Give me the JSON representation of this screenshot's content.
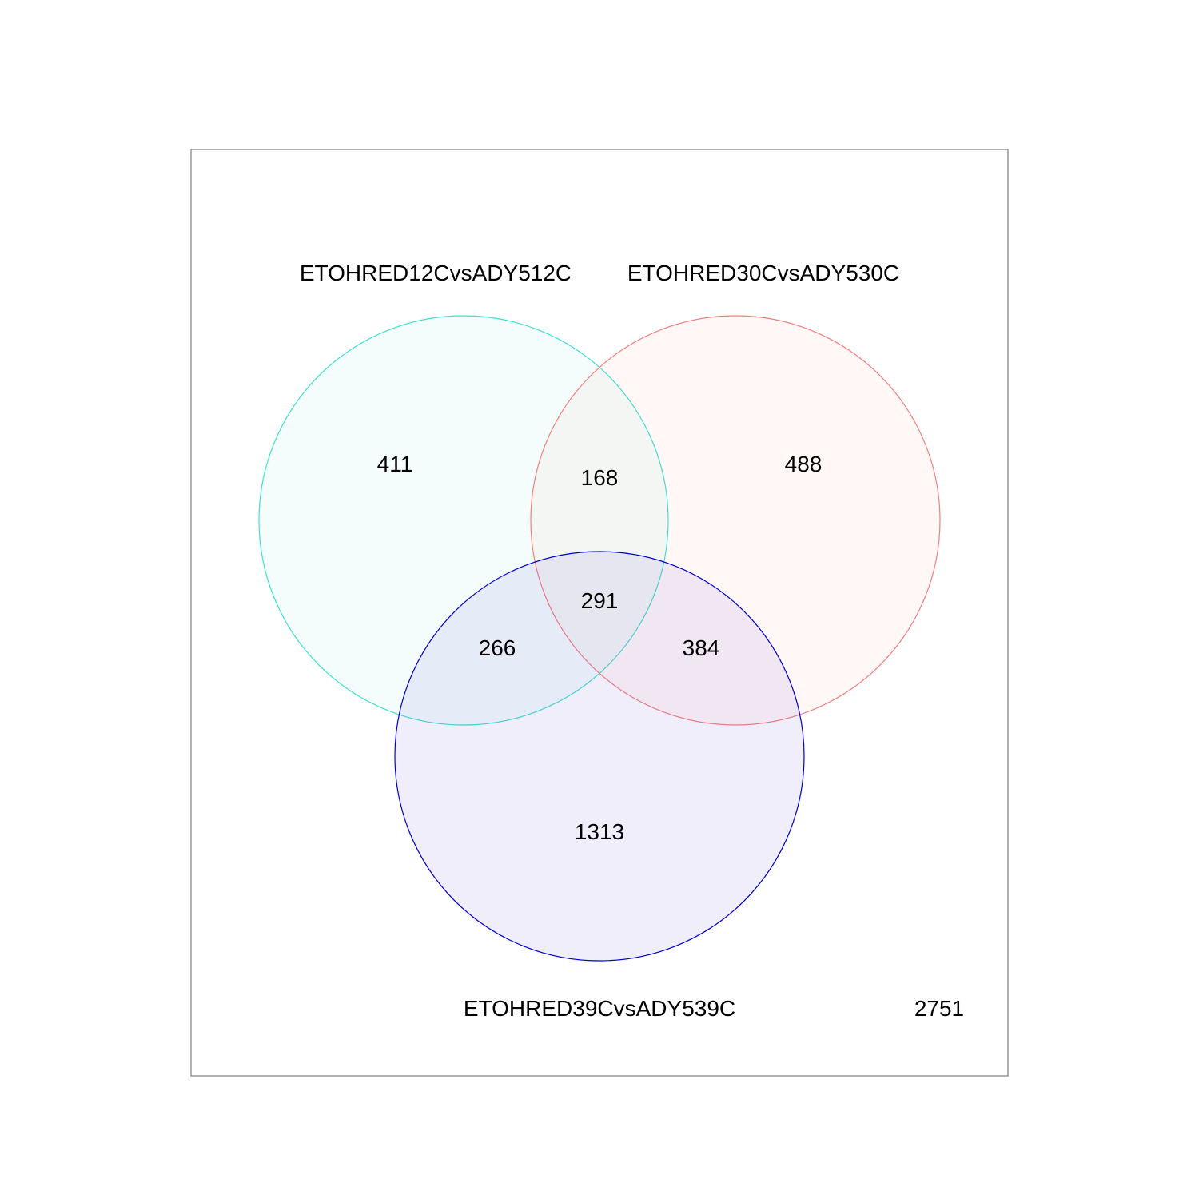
{
  "sets": [
    {
      "label": "ETOHRED12CvsADY512C",
      "stroke": "#40e0d0",
      "fill": "#40e0d0"
    },
    {
      "label": "ETOHRED30CvsADY530C",
      "stroke": "#f08080",
      "fill": "#fa8072"
    },
    {
      "label": "ETOHRED39CvsADY539C",
      "stroke": "#0000cd",
      "fill": "#6a5acd"
    }
  ],
  "regions": {
    "only_1": "411",
    "only_2": "488",
    "only_3": "1313",
    "set_1_2": "168",
    "set_1_3": "266",
    "set_2_3": "384",
    "set_1_2_3": "291",
    "none": "2751"
  }
}
